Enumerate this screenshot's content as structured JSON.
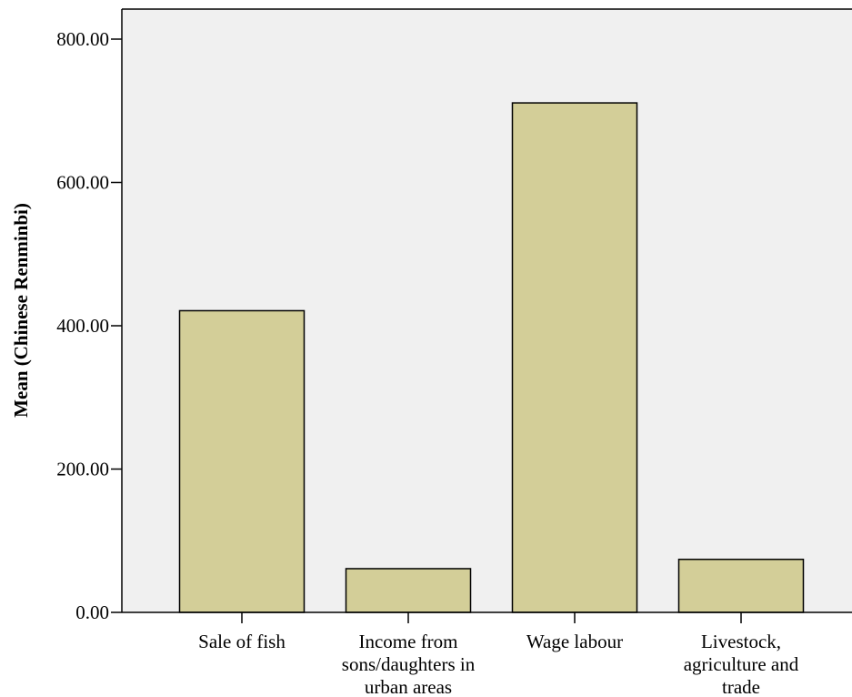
{
  "chart_data": {
    "type": "bar",
    "title": "",
    "xlabel": "",
    "ylabel": "Mean (Chinese Renminbi)",
    "categories": [
      "Sale of fish",
      "Income from sons/daughters in urban areas",
      "Wage labour",
      "Livestock, agriculture and trade"
    ],
    "category_lines": [
      [
        "Sale of fish"
      ],
      [
        "Income from",
        "sons/daughters in",
        "urban areas"
      ],
      [
        "Wage labour"
      ],
      [
        "Livestock,",
        "agriculture and",
        "trade"
      ]
    ],
    "values": [
      421,
      61,
      711,
      74
    ],
    "ylim": [
      0,
      800
    ],
    "yticks": [
      0,
      200,
      400,
      600,
      800
    ],
    "ytick_labels": [
      "0.00",
      "200.00",
      "400.00",
      "600.00",
      "800.00"
    ],
    "grid": false,
    "legend": "none",
    "colors": {
      "bar_fill": "#d3ce98",
      "bar_stroke": "#000000",
      "plot_background": "#f0f0f0",
      "axis": "#000000"
    }
  }
}
